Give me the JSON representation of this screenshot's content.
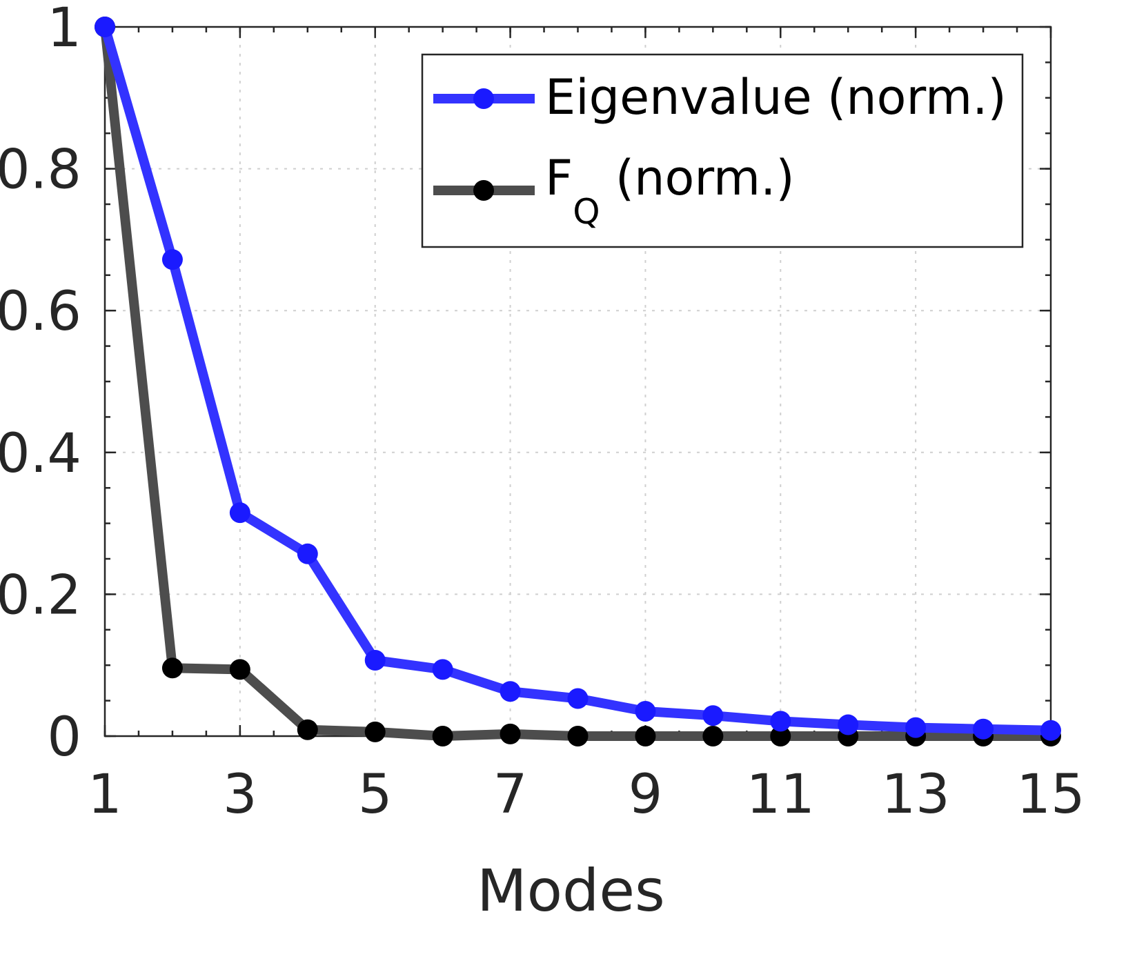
{
  "chart_data": {
    "type": "line",
    "title": "",
    "xlabel": "Modes",
    "ylabel": "",
    "xlim": [
      1,
      15
    ],
    "ylim": [
      0,
      1
    ],
    "x": [
      1,
      2,
      3,
      4,
      5,
      6,
      7,
      8,
      9,
      10,
      11,
      12,
      13,
      14,
      15
    ],
    "xticks": [
      "1",
      "3",
      "5",
      "7",
      "9",
      "11",
      "13",
      "15"
    ],
    "yticks": [
      "0",
      "0.2",
      "0.4",
      "0.6",
      "0.8",
      "1"
    ],
    "grid": true,
    "legend_position": "top-right",
    "series": [
      {
        "name": "Eigenvalue (norm.)",
        "color": "#3333ff",
        "marker_color": "#1a1aff",
        "values": [
          1.0,
          0.672,
          0.315,
          0.257,
          0.107,
          0.094,
          0.063,
          0.053,
          0.035,
          0.029,
          0.021,
          0.016,
          0.012,
          0.01,
          0.008
        ]
      },
      {
        "name": "F",
        "name_subscript": "Q",
        "name_suffix": " (norm.)",
        "color": "#4d4d4d",
        "marker_color": "#000000",
        "values": [
          1.0,
          0.096,
          0.094,
          0.009,
          0.006,
          0.0,
          0.003,
          0.0,
          0.0,
          0.0,
          0.0,
          0.0,
          0.0,
          0.0,
          0.0
        ]
      }
    ]
  }
}
